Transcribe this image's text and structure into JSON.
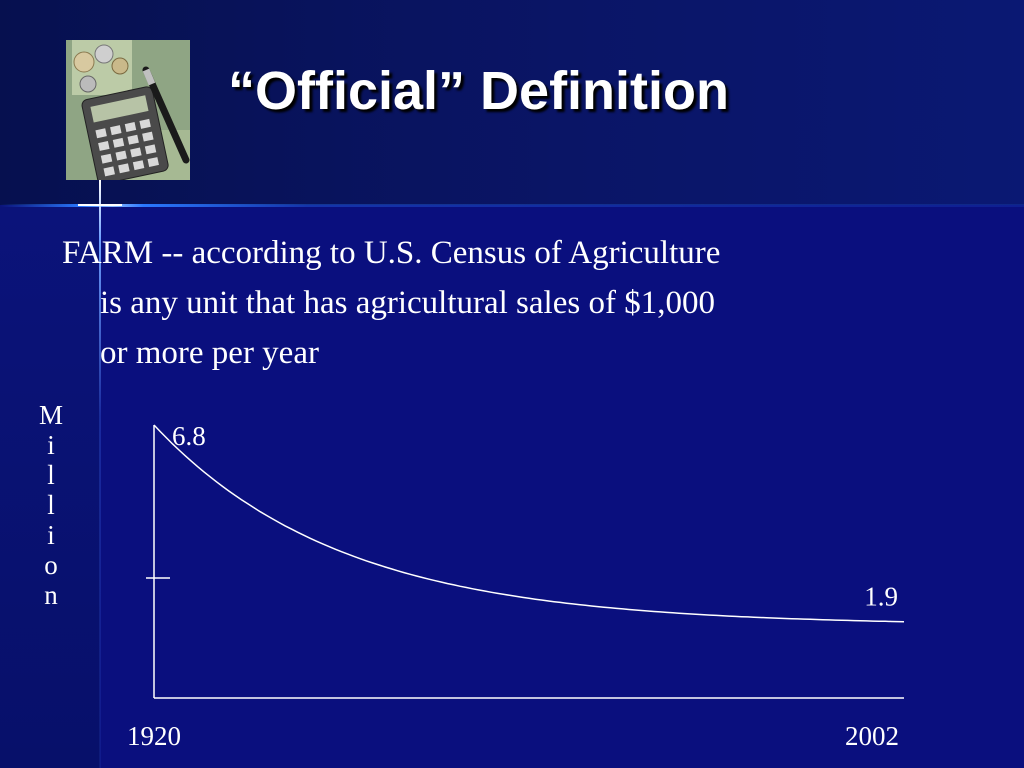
{
  "slide": {
    "title": "“Official” Definition",
    "definition_lines": [
      "FARM --  according to U.S. Census of Agriculture",
      "is any unit that has agricultural sales of $1,000",
      "or more per year"
    ]
  },
  "colors": {
    "background": "#0a0f78",
    "text": "#ffffff",
    "accent_line": "#2a78ff"
  },
  "image": {
    "icon": "calculator-money-photo"
  },
  "chart_data": {
    "type": "line",
    "ylabel": "Million",
    "x": [
      1920,
      2002
    ],
    "xtick_labels": [
      "1920",
      "2002"
    ],
    "series": [
      {
        "x": [
          1920,
          1940,
          1960,
          1980,
          2002
        ],
        "values": [
          6.8,
          4.9,
          3.5,
          2.5,
          1.9
        ]
      }
    ],
    "data_labels": [
      {
        "x": 1920,
        "y": 6.8,
        "text": "6.8"
      },
      {
        "x": 2002,
        "y": 1.9,
        "text": "1.9"
      }
    ],
    "grid": false,
    "legend": "none"
  }
}
